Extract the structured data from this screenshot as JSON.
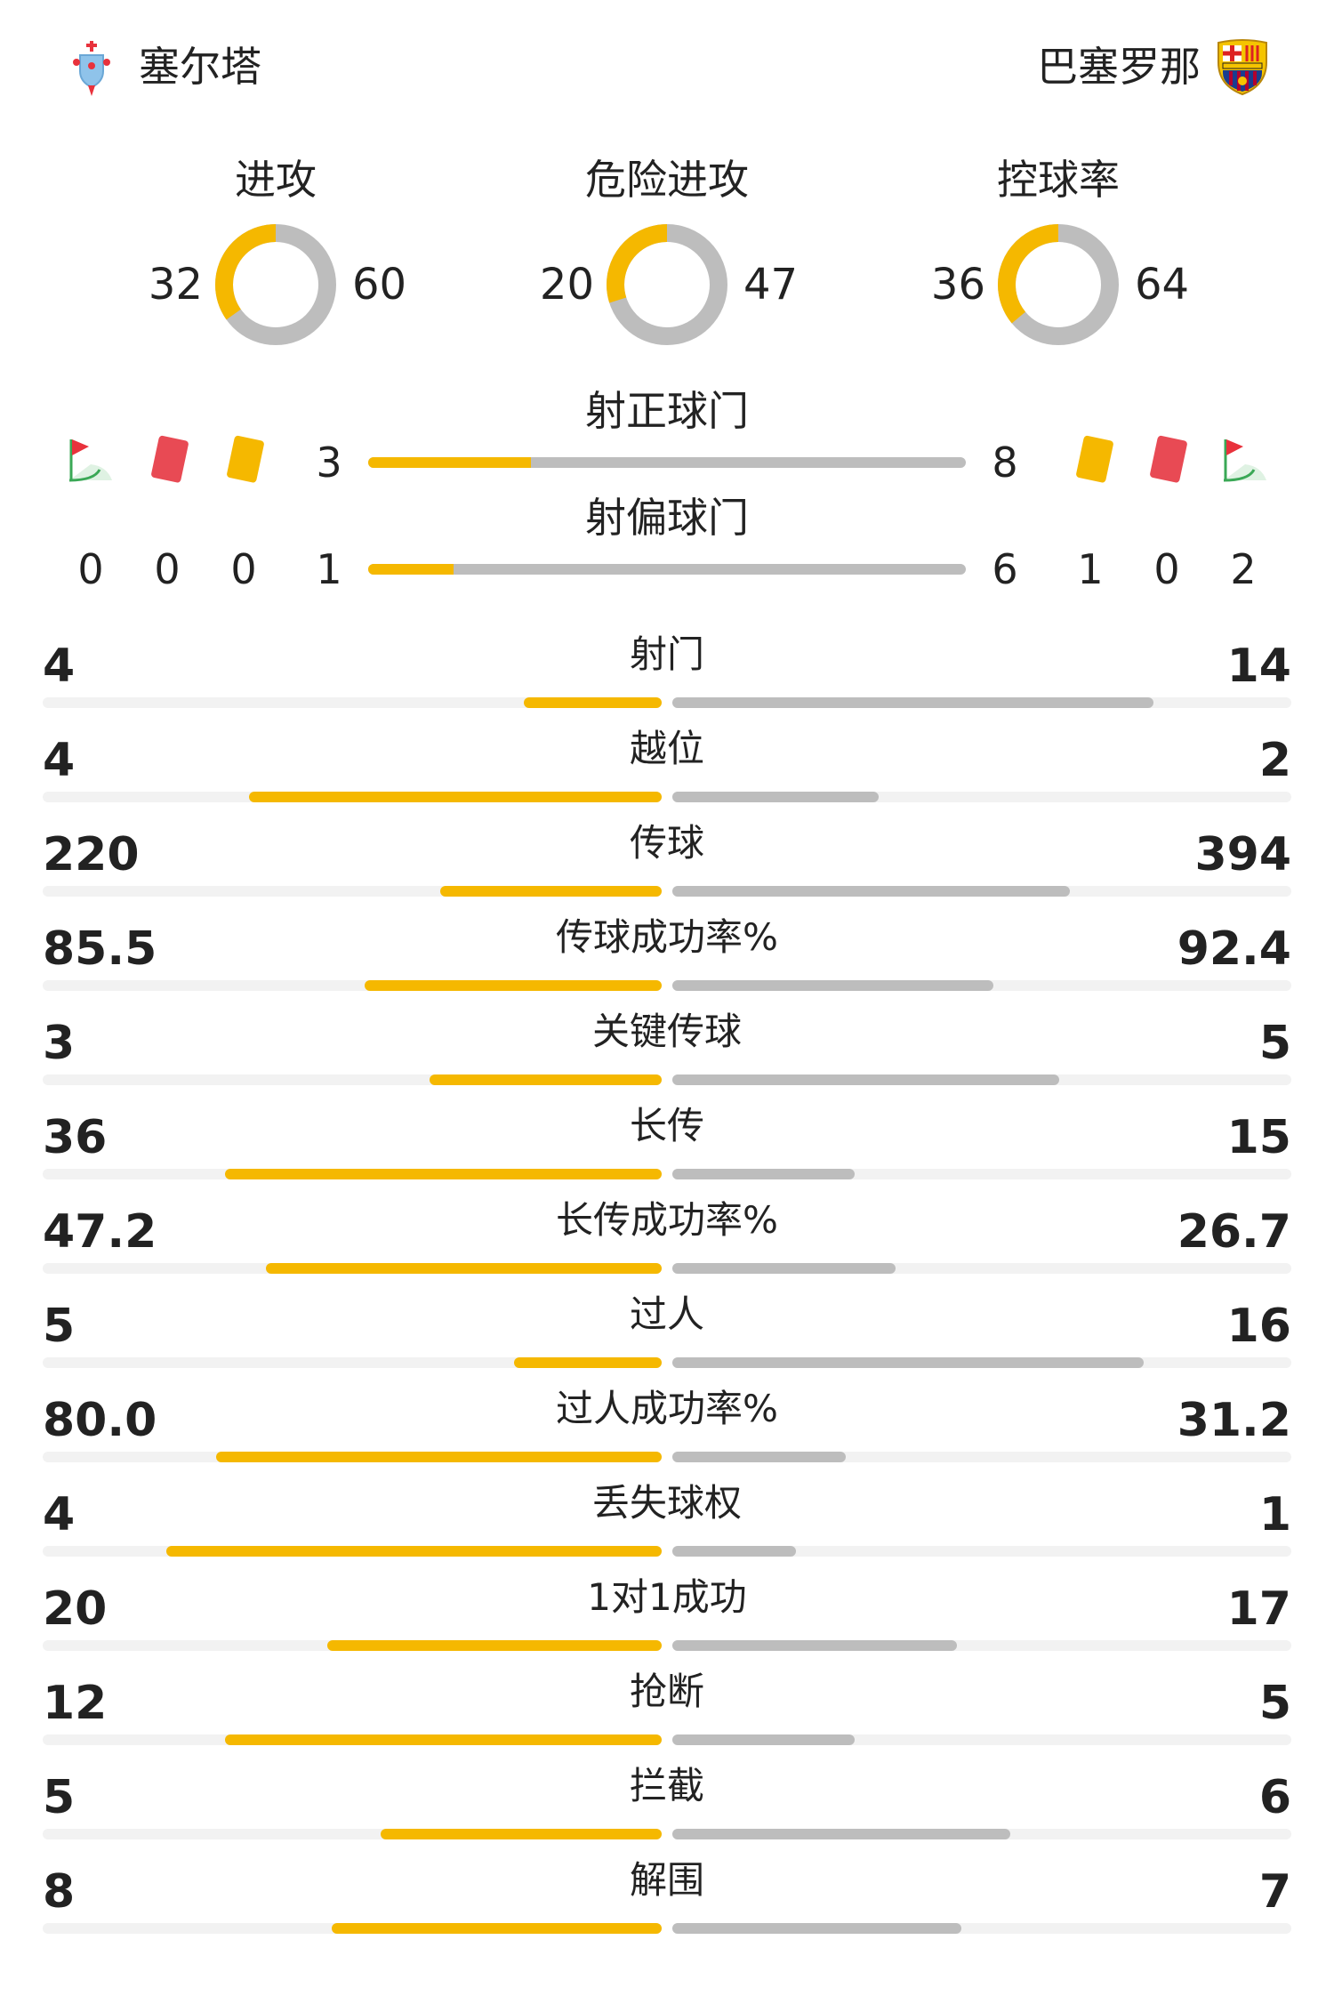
{
  "teams": {
    "home": {
      "name": "塞尔塔",
      "color": "#f5b800"
    },
    "away": {
      "name": "巴塞罗那",
      "color": "#bdbdbd"
    }
  },
  "rings": [
    {
      "title": "进攻",
      "home": "32",
      "away": "60",
      "home_value": 32,
      "away_value": 60
    },
    {
      "title": "危险进攻",
      "home": "20",
      "away": "47",
      "home_value": 20,
      "away_value": 47
    },
    {
      "title": "控球率",
      "home": "36",
      "away": "64",
      "home_value": 36,
      "away_value": 64
    }
  ],
  "shots": {
    "on_target": {
      "title": "射正球门",
      "home": "3",
      "away": "8",
      "home_value": 3,
      "away_value": 8
    },
    "off_target": {
      "title": "射偏球门",
      "home": "1",
      "away": "6",
      "home_value": 1,
      "away_value": 6
    }
  },
  "event_counts": {
    "icons": [
      "corner-flag-icon",
      "red-card-icon",
      "yellow-card-icon"
    ],
    "home": {
      "corners": "0",
      "red_cards": "0",
      "yellow_cards": "0"
    },
    "away": {
      "yellow_cards": "1",
      "red_cards": "0",
      "corners": "2"
    }
  },
  "stats": [
    {
      "label": "射门",
      "home": "4",
      "away": "14",
      "home_value": 4,
      "away_value": 14
    },
    {
      "label": "越位",
      "home": "4",
      "away": "2",
      "home_value": 4,
      "away_value": 2
    },
    {
      "label": "传球",
      "home": "220",
      "away": "394",
      "home_value": 220,
      "away_value": 394
    },
    {
      "label": "传球成功率%",
      "home": "85.5",
      "away": "92.4",
      "home_value": 85.5,
      "away_value": 92.4
    },
    {
      "label": "关键传球",
      "home": "3",
      "away": "5",
      "home_value": 3,
      "away_value": 5
    },
    {
      "label": "长传",
      "home": "36",
      "away": "15",
      "home_value": 36,
      "away_value": 15
    },
    {
      "label": "长传成功率%",
      "home": "47.2",
      "away": "26.7",
      "home_value": 47.2,
      "away_value": 26.7
    },
    {
      "label": "过人",
      "home": "5",
      "away": "16",
      "home_value": 5,
      "away_value": 16
    },
    {
      "label": "过人成功率%",
      "home": "80.0",
      "away": "31.2",
      "home_value": 80.0,
      "away_value": 31.2
    },
    {
      "label": "丢失球权",
      "home": "4",
      "away": "1",
      "home_value": 4,
      "away_value": 1
    },
    {
      "label": "1对1成功",
      "home": "20",
      "away": "17",
      "home_value": 20,
      "away_value": 17
    },
    {
      "label": "抢断",
      "home": "12",
      "away": "5",
      "home_value": 12,
      "away_value": 5
    },
    {
      "label": "拦截",
      "home": "5",
      "away": "6",
      "home_value": 5,
      "away_value": 6
    },
    {
      "label": "解围",
      "home": "8",
      "away": "7",
      "home_value": 8,
      "away_value": 7
    }
  ]
}
